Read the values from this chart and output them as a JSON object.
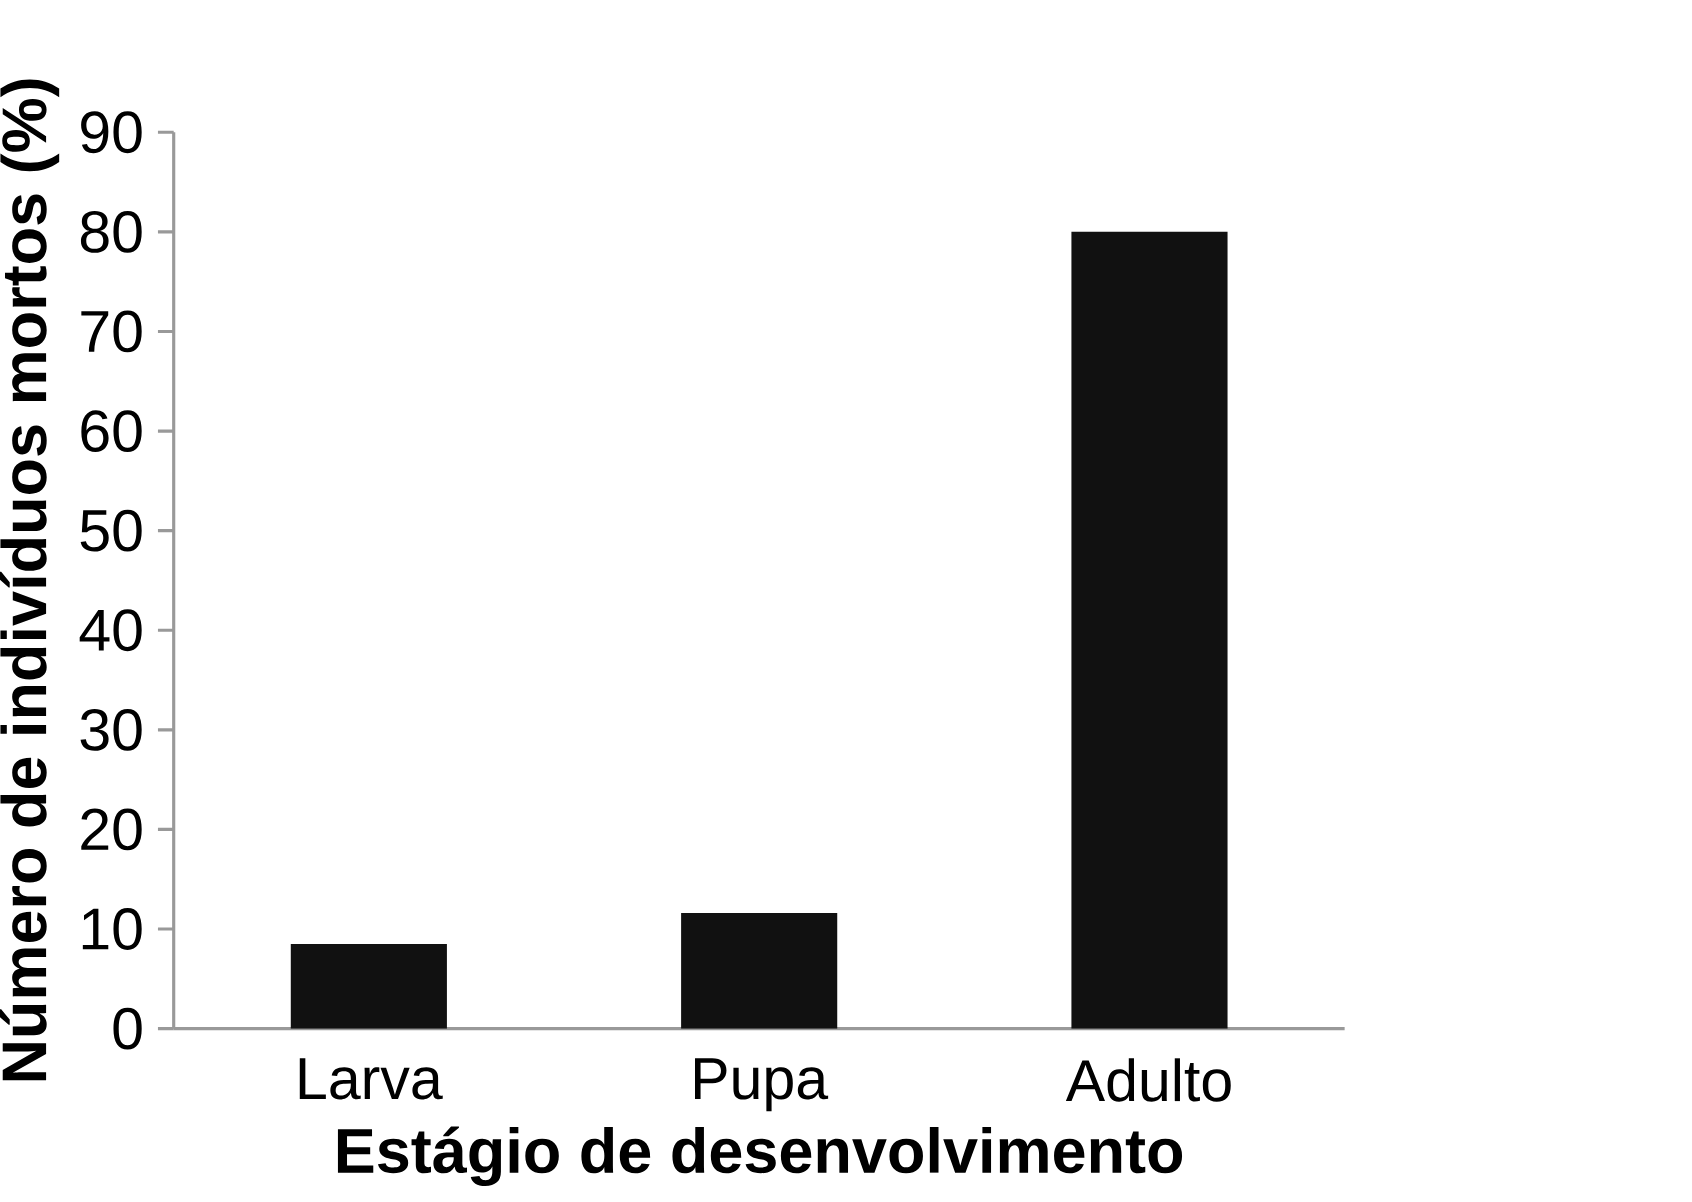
{
  "chart_data": {
    "type": "bar",
    "xlabel": "Estágio de desenvolvimento",
    "ylabel": "Número de indivíduos mortos (%)",
    "categories": [
      "Larva",
      "Pupa",
      "Adulto"
    ],
    "values": [
      8.5,
      11.6,
      80
    ],
    "color": "#111111",
    "ylim": [
      0,
      90
    ],
    "yticks": [
      0,
      10,
      20,
      30,
      40,
      50,
      60,
      70,
      80,
      90
    ],
    "grid": false
  }
}
